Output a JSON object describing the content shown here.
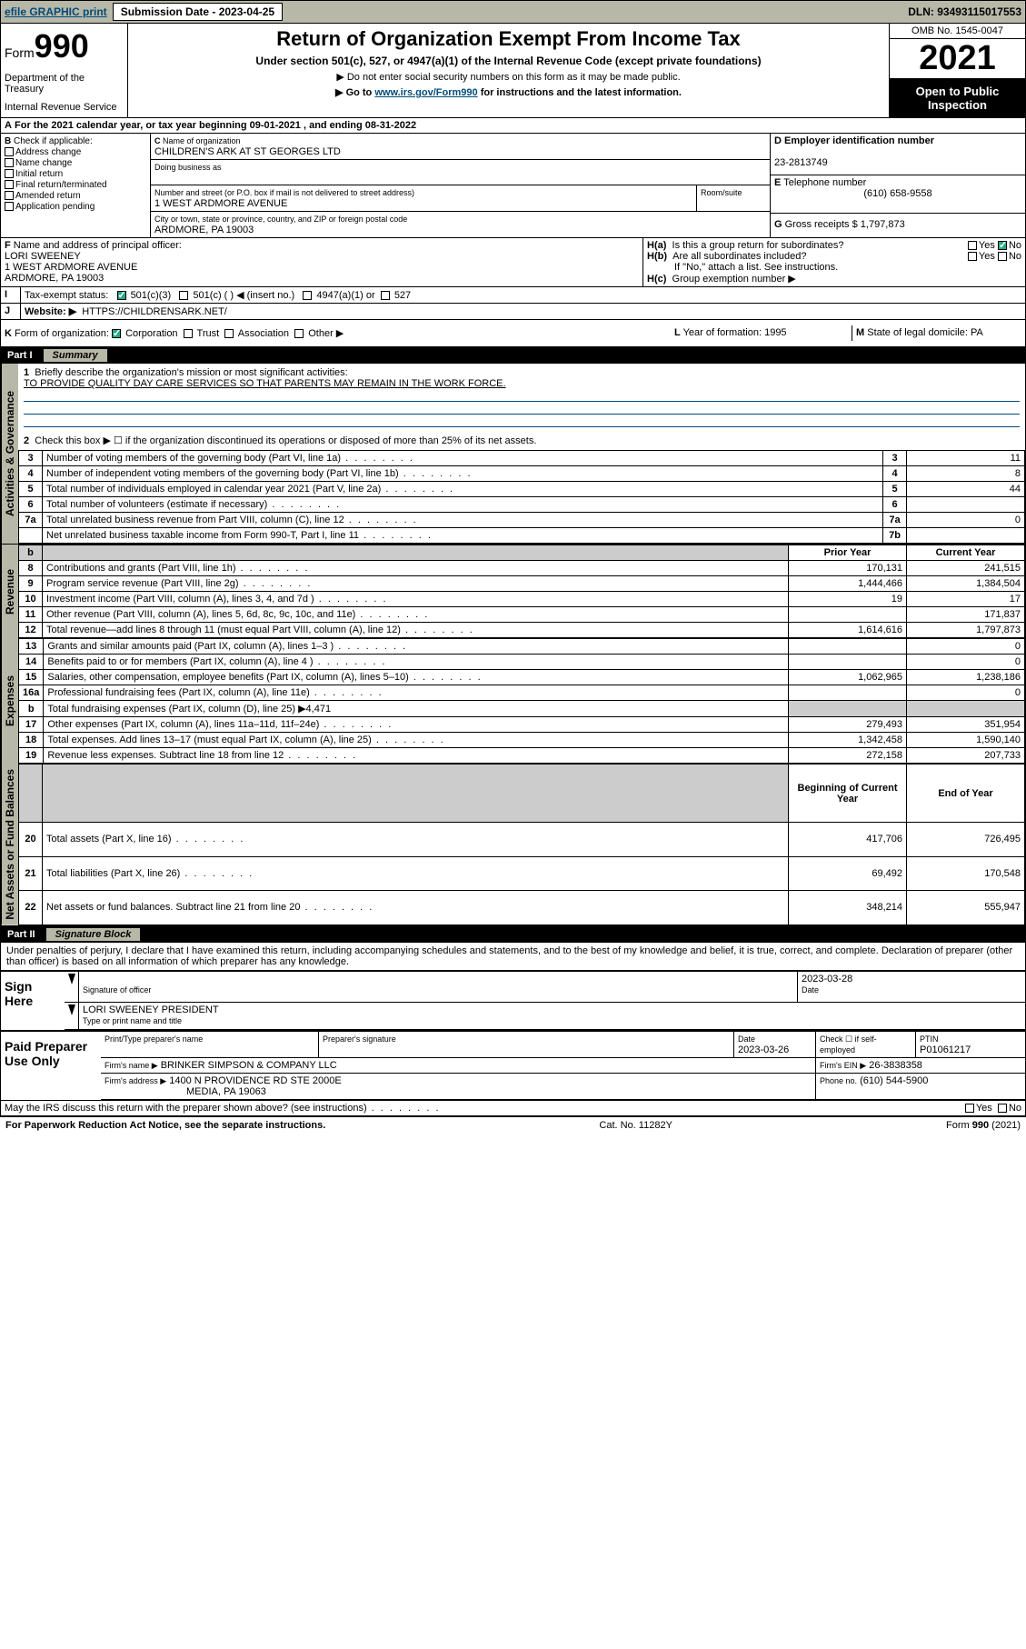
{
  "topbar": {
    "efile": "efile GRAPHIC print",
    "submission_label": "Submission Date - 2023-04-25",
    "dln": "DLN: 93493115017553"
  },
  "header": {
    "form_prefix": "Form",
    "form_number": "990",
    "dept": "Department of the Treasury",
    "irs": "Internal Revenue Service",
    "title": "Return of Organization Exempt From Income Tax",
    "subtitle": "Under section 501(c), 527, or 4947(a)(1) of the Internal Revenue Code (except private foundations)",
    "note1": "▶ Do not enter social security numbers on this form as it may be made public.",
    "note2_pre": "▶ Go to ",
    "note2_link": "www.irs.gov/Form990",
    "note2_post": " for instructions and the latest information.",
    "omb": "OMB No. 1545-0047",
    "year": "2021",
    "open_public": "Open to Public Inspection"
  },
  "periodA": {
    "text_pre": "For the 2021 calendar year, or tax year beginning ",
    "begin": "09-01-2021",
    "mid": " , and ending ",
    "end": "08-31-2022"
  },
  "boxB": {
    "label": "Check if applicable:",
    "items": [
      "Address change",
      "Name change",
      "Initial return",
      "Final return/terminated",
      "Amended return",
      "Application pending"
    ]
  },
  "boxC": {
    "label": "Name of organization",
    "name": "CHILDREN'S ARK AT ST GEORGES LTD",
    "dba_label": "Doing business as",
    "street_label": "Number and street (or P.O. box if mail is not delivered to street address)",
    "room_label": "Room/suite",
    "street": "1 WEST ARDMORE AVENUE",
    "city_label": "City or town, state or province, country, and ZIP or foreign postal code",
    "city": "ARDMORE, PA  19003"
  },
  "boxD": {
    "label": "Employer identification number",
    "value": "23-2813749"
  },
  "boxE": {
    "label": "Telephone number",
    "value": "(610) 658-9558"
  },
  "boxG": {
    "label": "Gross receipts $",
    "value": "1,797,873"
  },
  "boxF": {
    "label": "Name and address of principal officer:",
    "name": "LORI SWEENEY",
    "addr1": "1 WEST ARDMORE AVENUE",
    "addr2": "ARDMORE, PA  19003"
  },
  "boxH": {
    "a": "Is this a group return for subordinates?",
    "a_yes": "Yes",
    "a_no": "No",
    "b": "Are all subordinates included?",
    "b_note": "If \"No,\" attach a list. See instructions.",
    "c": "Group exemption number ▶"
  },
  "boxI": {
    "label": "Tax-exempt status:",
    "c3": "501(c)(3)",
    "c": "501(c) (   ) ◀ (insert no.)",
    "a1": "4947(a)(1) or",
    "527": "527"
  },
  "boxJ": {
    "label": "Website: ▶",
    "value": "HTTPS://CHILDRENSARK.NET/"
  },
  "boxK": {
    "label": "Form of organization:",
    "corp": "Corporation",
    "trust": "Trust",
    "assoc": "Association",
    "other": "Other ▶"
  },
  "boxL": {
    "label": "Year of formation:",
    "value": "1995"
  },
  "boxM": {
    "label": "State of legal domicile:",
    "value": "PA"
  },
  "part1": {
    "header_part": "Part I",
    "header_title": "Summary",
    "line1_label": "Briefly describe the organization's mission or most significant activities:",
    "line1_text": "TO PROVIDE QUALITY DAY CARE SERVICES SO THAT PARENTS MAY REMAIN IN THE WORK FORCE.",
    "line2": "Check this box ▶ ☐  if the organization discontinued its operations or disposed of more than 25% of its net assets.",
    "tabs": {
      "gov": "Activities & Governance",
      "rev": "Revenue",
      "exp": "Expenses",
      "net": "Net Assets or Fund Balances"
    },
    "col_prior": "Prior Year",
    "col_current": "Current Year",
    "col_boy": "Beginning of Current Year",
    "col_eoy": "End of Year",
    "lines_gov": [
      {
        "n": "3",
        "t": "Number of voting members of the governing body (Part VI, line 1a)",
        "box": "3",
        "v": "11"
      },
      {
        "n": "4",
        "t": "Number of independent voting members of the governing body (Part VI, line 1b)",
        "box": "4",
        "v": "8"
      },
      {
        "n": "5",
        "t": "Total number of individuals employed in calendar year 2021 (Part V, line 2a)",
        "box": "5",
        "v": "44"
      },
      {
        "n": "6",
        "t": "Total number of volunteers (estimate if necessary)",
        "box": "6",
        "v": ""
      },
      {
        "n": "7a",
        "t": "Total unrelated business revenue from Part VIII, column (C), line 12",
        "box": "7a",
        "v": "0"
      },
      {
        "n": "",
        "t": "Net unrelated business taxable income from Form 990-T, Part I, line 11",
        "box": "7b",
        "v": ""
      }
    ],
    "lines_rev": [
      {
        "n": "8",
        "t": "Contributions and grants (Part VIII, line 1h)",
        "p": "170,131",
        "c": "241,515"
      },
      {
        "n": "9",
        "t": "Program service revenue (Part VIII, line 2g)",
        "p": "1,444,466",
        "c": "1,384,504"
      },
      {
        "n": "10",
        "t": "Investment income (Part VIII, column (A), lines 3, 4, and 7d )",
        "p": "19",
        "c": "17"
      },
      {
        "n": "11",
        "t": "Other revenue (Part VIII, column (A), lines 5, 6d, 8c, 9c, 10c, and 11e)",
        "p": "",
        "c": "171,837"
      },
      {
        "n": "12",
        "t": "Total revenue—add lines 8 through 11 (must equal Part VIII, column (A), line 12)",
        "p": "1,614,616",
        "c": "1,797,873"
      }
    ],
    "lines_exp": [
      {
        "n": "13",
        "t": "Grants and similar amounts paid (Part IX, column (A), lines 1–3 )",
        "p": "",
        "c": "0"
      },
      {
        "n": "14",
        "t": "Benefits paid to or for members (Part IX, column (A), line 4 )",
        "p": "",
        "c": "0"
      },
      {
        "n": "15",
        "t": "Salaries, other compensation, employee benefits (Part IX, column (A), lines 5–10)",
        "p": "1,062,965",
        "c": "1,238,186"
      },
      {
        "n": "16a",
        "t": "Professional fundraising fees (Part IX, column (A), line 11e)",
        "p": "",
        "c": "0"
      },
      {
        "n": "b",
        "t": "Total fundraising expenses (Part IX, column (D), line 25) ▶4,471",
        "p": "GREY",
        "c": "GREY"
      },
      {
        "n": "17",
        "t": "Other expenses (Part IX, column (A), lines 11a–11d, 11f–24e)",
        "p": "279,493",
        "c": "351,954"
      },
      {
        "n": "18",
        "t": "Total expenses. Add lines 13–17 (must equal Part IX, column (A), line 25)",
        "p": "1,342,458",
        "c": "1,590,140"
      },
      {
        "n": "19",
        "t": "Revenue less expenses. Subtract line 18 from line 12",
        "p": "272,158",
        "c": "207,733"
      }
    ],
    "lines_net": [
      {
        "n": "20",
        "t": "Total assets (Part X, line 16)",
        "p": "417,706",
        "c": "726,495"
      },
      {
        "n": "21",
        "t": "Total liabilities (Part X, line 26)",
        "p": "69,492",
        "c": "170,548"
      },
      {
        "n": "22",
        "t": "Net assets or fund balances. Subtract line 21 from line 20",
        "p": "348,214",
        "c": "555,947"
      }
    ]
  },
  "part2": {
    "header_part": "Part II",
    "header_title": "Signature Block",
    "declaration": "Under penalties of perjury, I declare that I have examined this return, including accompanying schedules and statements, and to the best of my knowledge and belief, it is true, correct, and complete. Declaration of preparer (other than officer) is based on all information of which preparer has any knowledge.",
    "sign_here": "Sign Here",
    "sig_officer": "Signature of officer",
    "sig_date": "Date",
    "sig_date_val": "2023-03-28",
    "officer_name": "LORI SWEENEY  PRESIDENT",
    "officer_label": "Type or print name and title",
    "paid_prep": "Paid Preparer Use Only",
    "prep_name_label": "Print/Type preparer's name",
    "prep_sig_label": "Preparer's signature",
    "prep_date_label": "Date",
    "prep_date": "2023-03-26",
    "self_emp": "Check ☐ if self-employed",
    "ptin_label": "PTIN",
    "ptin": "P01061217",
    "firm_name_label": "Firm's name    ▶",
    "firm_name": "BRINKER SIMPSON & COMPANY LLC",
    "firm_ein_label": "Firm's EIN ▶",
    "firm_ein": "26-3838358",
    "firm_addr_label": "Firm's address ▶",
    "firm_addr1": "1400 N PROVIDENCE RD STE 2000E",
    "firm_addr2": "MEDIA, PA  19063",
    "firm_phone_label": "Phone no.",
    "firm_phone": "(610) 544-5900",
    "discuss": "May the IRS discuss this return with the preparer shown above? (see instructions)",
    "yes": "Yes",
    "no": "No"
  },
  "footer": {
    "pra": "For Paperwork Reduction Act Notice, see the separate instructions.",
    "cat": "Cat. No. 11282Y",
    "form": "Form 990 (2021)"
  },
  "style": {
    "bg_grey": "#b8b8a8",
    "link_color": "#004b7a"
  }
}
